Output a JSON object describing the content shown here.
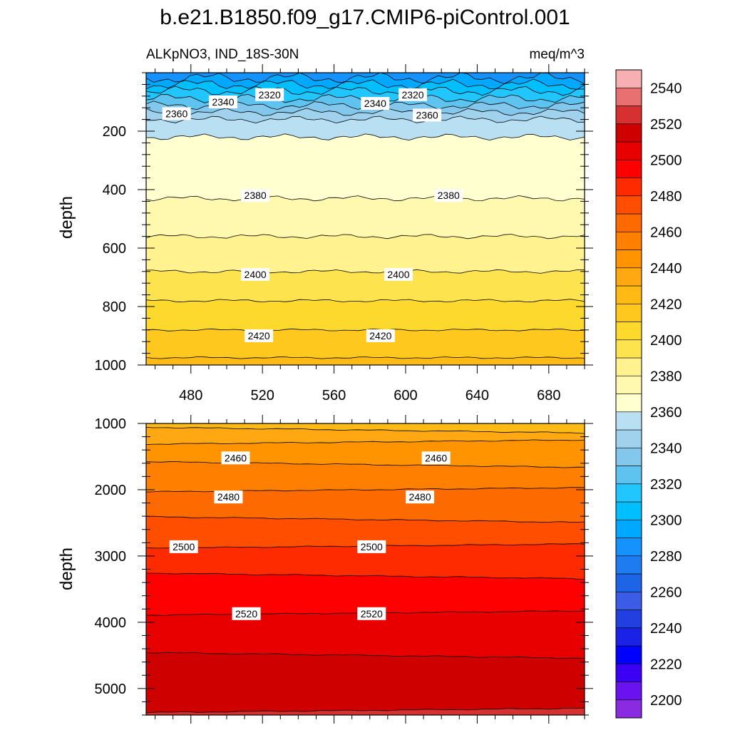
{
  "figure": {
    "title": "b.e21.B1850.f09_g17.CMIP6-piControl.001",
    "variable_label": "ALKpNO3, IND_18S-30N",
    "units_label": "meq/m^3"
  },
  "chart_data": [
    {
      "type": "heatmap",
      "panel": "upper",
      "ylabel": "depth",
      "xlabel": "",
      "xlim": [
        455,
        700
      ],
      "ylim": [
        1000,
        0
      ],
      "y_inverted": true,
      "xticks": [
        480,
        520,
        560,
        600,
        640,
        680
      ],
      "yticks": [
        200,
        400,
        600,
        800,
        1000
      ],
      "contour_interval": 10,
      "contours": [
        {
          "level": 2300,
          "depth": 18
        },
        {
          "level": 2310,
          "depth": 40
        },
        {
          "level": 2320,
          "depth": 62
        },
        {
          "level": 2330,
          "depth": 88
        },
        {
          "level": 2340,
          "depth": 112
        },
        {
          "level": 2350,
          "depth": 135
        },
        {
          "level": 2360,
          "depth": 160
        },
        {
          "level": 2370,
          "depth": 220
        },
        {
          "level": 2380,
          "depth": 430
        },
        {
          "level": 2390,
          "depth": 560
        },
        {
          "level": 2400,
          "depth": 680
        },
        {
          "level": 2410,
          "depth": 780
        },
        {
          "level": 2420,
          "depth": 880
        },
        {
          "level": 2430,
          "depth": 975
        }
      ],
      "contour_labels": [
        {
          "text": "2320",
          "x": 524,
          "depth": 75
        },
        {
          "text": "2320",
          "x": 604,
          "depth": 75
        },
        {
          "text": "2340",
          "x": 498,
          "depth": 100
        },
        {
          "text": "2340",
          "x": 583,
          "depth": 105
        },
        {
          "text": "2360",
          "x": 472,
          "depth": 140
        },
        {
          "text": "2360",
          "x": 612,
          "depth": 145
        },
        {
          "text": "2380",
          "x": 516,
          "depth": 420
        },
        {
          "text": "2380",
          "x": 624,
          "depth": 420
        },
        {
          "text": "2400",
          "x": 516,
          "depth": 690
        },
        {
          "text": "2400",
          "x": 596,
          "depth": 690
        },
        {
          "text": "2420",
          "x": 518,
          "depth": 900
        },
        {
          "text": "2420",
          "x": 586,
          "depth": 900
        }
      ]
    },
    {
      "type": "heatmap",
      "panel": "lower",
      "ylabel": "depth",
      "xlabel": "",
      "xlim": [
        455,
        700
      ],
      "ylim": [
        5400,
        1000
      ],
      "y_inverted": true,
      "yticks": [
        1000,
        2000,
        3000,
        4000,
        5000
      ],
      "contour_interval": 10,
      "contours": [
        {
          "level": 2440,
          "depth": 1100
        },
        {
          "level": 2450,
          "depth": 1280
        },
        {
          "level": 2460,
          "depth": 1620
        },
        {
          "level": 2470,
          "depth": 2000
        },
        {
          "level": 2480,
          "depth": 2450
        },
        {
          "level": 2490,
          "depth": 2850
        },
        {
          "level": 2500,
          "depth": 3300
        },
        {
          "level": 2510,
          "depth": 3860
        },
        {
          "level": 2520,
          "depth": 4500
        },
        {
          "level": 2530,
          "depth": 5330
        }
      ],
      "contour_labels": [
        {
          "text": "2460",
          "x": 505,
          "depth": 1520
        },
        {
          "text": "2460",
          "x": 617,
          "depth": 1520
        },
        {
          "text": "2480",
          "x": 501,
          "depth": 2110
        },
        {
          "text": "2480",
          "x": 608,
          "depth": 2110
        },
        {
          "text": "2500",
          "x": 476,
          "depth": 2860
        },
        {
          "text": "2500",
          "x": 581,
          "depth": 2860
        },
        {
          "text": "2520",
          "x": 511,
          "depth": 3870
        },
        {
          "text": "2520",
          "x": 581,
          "depth": 3870
        }
      ]
    }
  ],
  "colorbar": {
    "levels": [
      2200,
      2210,
      2220,
      2230,
      2240,
      2250,
      2260,
      2270,
      2280,
      2290,
      2300,
      2310,
      2320,
      2330,
      2340,
      2350,
      2360,
      2370,
      2380,
      2390,
      2400,
      2410,
      2420,
      2430,
      2440,
      2450,
      2460,
      2470,
      2480,
      2490,
      2500,
      2510,
      2520,
      2530,
      2540,
      2550
    ],
    "colors": [
      "#8a2be2",
      "#6a12f0",
      "#3c00f5",
      "#0000ff",
      "#1a22e8",
      "#2240e0",
      "#3a5ce6",
      "#1e64e6",
      "#1f7cf0",
      "#1493ff",
      "#00a8ff",
      "#00bfff",
      "#22c6ff",
      "#5ec4ef",
      "#83c8ec",
      "#a0d2ee",
      "#b8e0f2",
      "#ffffd0",
      "#fff9b0",
      "#fff28f",
      "#fde44f",
      "#fdd92e",
      "#ffc81e",
      "#ffbb14",
      "#ffa812",
      "#ff9400",
      "#ff8000",
      "#fd6a00",
      "#ff4e00",
      "#fe2a00",
      "#ff0000",
      "#e80000",
      "#cf0000",
      "#d63030",
      "#e87070",
      "#f7b0b2"
    ],
    "labels": [
      "2200",
      "2220",
      "2240",
      "2260",
      "2280",
      "2300",
      "2320",
      "2340",
      "2360",
      "2380",
      "2400",
      "2420",
      "2440",
      "2460",
      "2480",
      "2500",
      "2520",
      "2540"
    ]
  }
}
